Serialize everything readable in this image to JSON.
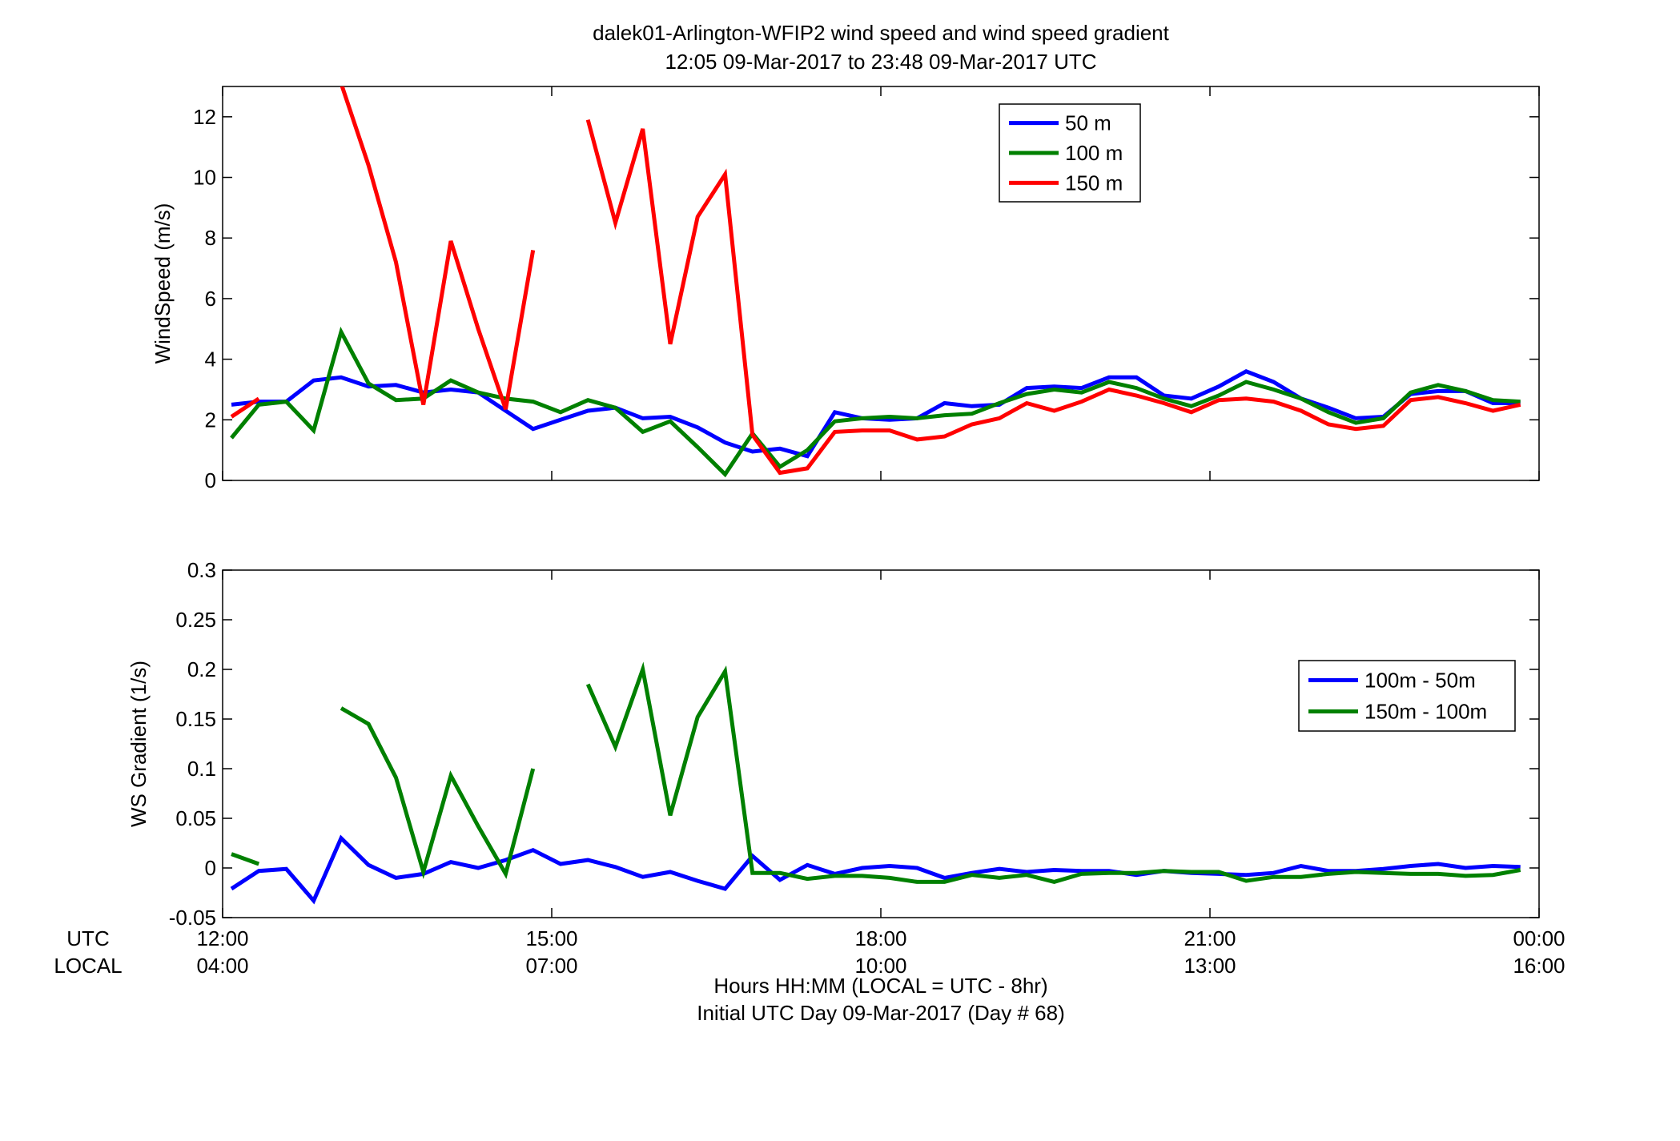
{
  "figure": {
    "title_line1": "dalek01-Arlington-WFIP2  wind speed and wind speed gradient",
    "title_line2": "12:05 09-Mar-2017 to 23:48 09-Mar-2017  UTC",
    "row_label_utc": "UTC",
    "row_label_local": "LOCAL",
    "xlabel_line1": "Hours HH:MM  (LOCAL = UTC - 8hr)",
    "xlabel_line2": "Initial UTC Day 09-Mar-2017 (Day # 68)",
    "x_ticks_utc": [
      "12:00",
      "15:00",
      "18:00",
      "21:00",
      "00:00"
    ],
    "x_ticks_local": [
      "04:00",
      "07:00",
      "10:00",
      "13:00",
      "16:00"
    ]
  },
  "colors": {
    "blue": "#0000ff",
    "green": "#008000",
    "red": "#ff0000"
  },
  "chart_data": [
    {
      "type": "line",
      "ylabel": "WindSpeed (m/s)",
      "x_unit": "hours UTC",
      "xlim": [
        12,
        24
      ],
      "ylim": [
        0,
        13
      ],
      "yticks": [
        0,
        2,
        4,
        6,
        8,
        10,
        12
      ],
      "legend_position": "top-right",
      "x": [
        12.08,
        12.33,
        12.58,
        12.83,
        13.08,
        13.33,
        13.58,
        13.83,
        14.08,
        14.33,
        14.58,
        14.83,
        15.08,
        15.33,
        15.58,
        15.83,
        16.08,
        16.33,
        16.58,
        16.83,
        17.08,
        17.33,
        17.58,
        17.83,
        18.08,
        18.33,
        18.58,
        18.83,
        19.08,
        19.33,
        19.58,
        19.83,
        20.08,
        20.33,
        20.58,
        20.83,
        21.08,
        21.33,
        21.58,
        21.83,
        22.08,
        22.33,
        22.58,
        22.83,
        23.08,
        23.33,
        23.58,
        23.83
      ],
      "series": [
        {
          "name": "50 m",
          "color": "#0000ff",
          "values": [
            2.5,
            2.6,
            2.6,
            3.3,
            3.4,
            3.1,
            3.15,
            2.9,
            3.0,
            2.9,
            2.3,
            1.7,
            2.0,
            2.3,
            2.4,
            2.05,
            2.1,
            1.75,
            1.25,
            0.95,
            1.05,
            0.8,
            2.25,
            2.05,
            2.0,
            2.05,
            2.55,
            2.45,
            2.5,
            3.05,
            3.1,
            3.05,
            3.4,
            3.4,
            2.8,
            2.7,
            3.1,
            3.6,
            3.25,
            2.7,
            2.4,
            2.05,
            2.1,
            2.85,
            2.95,
            2.95,
            2.55,
            2.55
          ]
        },
        {
          "name": "100 m",
          "color": "#008000",
          "values": [
            1.4,
            2.5,
            2.6,
            1.65,
            4.9,
            3.2,
            2.65,
            2.7,
            3.3,
            2.9,
            2.7,
            2.6,
            2.25,
            2.65,
            2.4,
            1.6,
            1.95,
            1.1,
            0.2,
            1.55,
            0.45,
            1.0,
            1.95,
            2.05,
            2.1,
            2.05,
            2.15,
            2.2,
            2.55,
            2.85,
            3.0,
            2.9,
            3.25,
            3.05,
            2.7,
            2.45,
            2.8,
            3.25,
            3.0,
            2.7,
            2.25,
            1.9,
            2.05,
            2.9,
            3.15,
            2.95,
            2.65,
            2.6
          ]
        },
        {
          "name": "150 m",
          "color": "#ff0000",
          "values": [
            2.1,
            2.7,
            null,
            null,
            13.1,
            10.4,
            7.2,
            2.5,
            7.9,
            5.0,
            2.35,
            7.6,
            null,
            11.9,
            8.5,
            11.6,
            4.5,
            8.7,
            10.1,
            1.5,
            0.25,
            0.4,
            1.6,
            1.65,
            1.65,
            1.35,
            1.45,
            1.85,
            2.05,
            2.55,
            2.3,
            2.6,
            3.0,
            2.8,
            2.55,
            2.25,
            2.65,
            2.7,
            2.6,
            2.3,
            1.85,
            1.7,
            1.8,
            2.65,
            2.75,
            2.55,
            2.3,
            2.5
          ]
        }
      ]
    },
    {
      "type": "line",
      "ylabel": "WS Gradient (1/s)",
      "x_unit": "hours UTC",
      "xlim": [
        12,
        24
      ],
      "ylim": [
        -0.05,
        0.3
      ],
      "yticks": [
        -0.05,
        0,
        0.05,
        0.1,
        0.15,
        0.2,
        0.25,
        0.3
      ],
      "legend_position": "right",
      "x": [
        12.08,
        12.33,
        12.58,
        12.83,
        13.08,
        13.33,
        13.58,
        13.83,
        14.08,
        14.33,
        14.58,
        14.83,
        15.08,
        15.33,
        15.58,
        15.83,
        16.08,
        16.33,
        16.58,
        16.83,
        17.08,
        17.33,
        17.58,
        17.83,
        18.08,
        18.33,
        18.58,
        18.83,
        19.08,
        19.33,
        19.58,
        19.83,
        20.08,
        20.33,
        20.58,
        20.83,
        21.08,
        21.33,
        21.58,
        21.83,
        22.08,
        22.33,
        22.58,
        22.83,
        23.08,
        23.33,
        23.58,
        23.83
      ],
      "series": [
        {
          "name": "100m - 50m",
          "color": "#0000ff",
          "values": [
            -0.021,
            -0.003,
            -0.001,
            -0.033,
            0.03,
            0.003,
            -0.01,
            -0.006,
            0.006,
            0.0,
            0.008,
            0.018,
            0.004,
            0.008,
            0.001,
            -0.009,
            -0.004,
            -0.013,
            -0.021,
            0.012,
            -0.012,
            0.003,
            -0.006,
            0.0,
            0.002,
            0.0,
            -0.01,
            -0.005,
            -0.001,
            -0.004,
            -0.002,
            -0.003,
            -0.003,
            -0.007,
            -0.003,
            -0.005,
            -0.006,
            -0.007,
            -0.005,
            0.002,
            -0.003,
            -0.003,
            -0.001,
            0.002,
            0.004,
            0.0,
            0.002,
            0.001
          ]
        },
        {
          "name": "150m - 100m",
          "color": "#008000",
          "values": [
            0.014,
            0.004,
            null,
            null,
            0.161,
            0.145,
            0.091,
            -0.004,
            0.093,
            0.042,
            -0.006,
            0.1,
            null,
            0.185,
            0.122,
            0.2,
            0.053,
            0.152,
            0.198,
            -0.005,
            -0.005,
            -0.011,
            -0.008,
            -0.008,
            -0.01,
            -0.014,
            -0.014,
            -0.007,
            -0.01,
            -0.007,
            -0.014,
            -0.006,
            -0.005,
            -0.005,
            -0.003,
            -0.004,
            -0.004,
            -0.013,
            -0.009,
            -0.009,
            -0.006,
            -0.004,
            -0.005,
            -0.006,
            -0.006,
            -0.008,
            -0.007,
            -0.002
          ]
        }
      ]
    }
  ]
}
